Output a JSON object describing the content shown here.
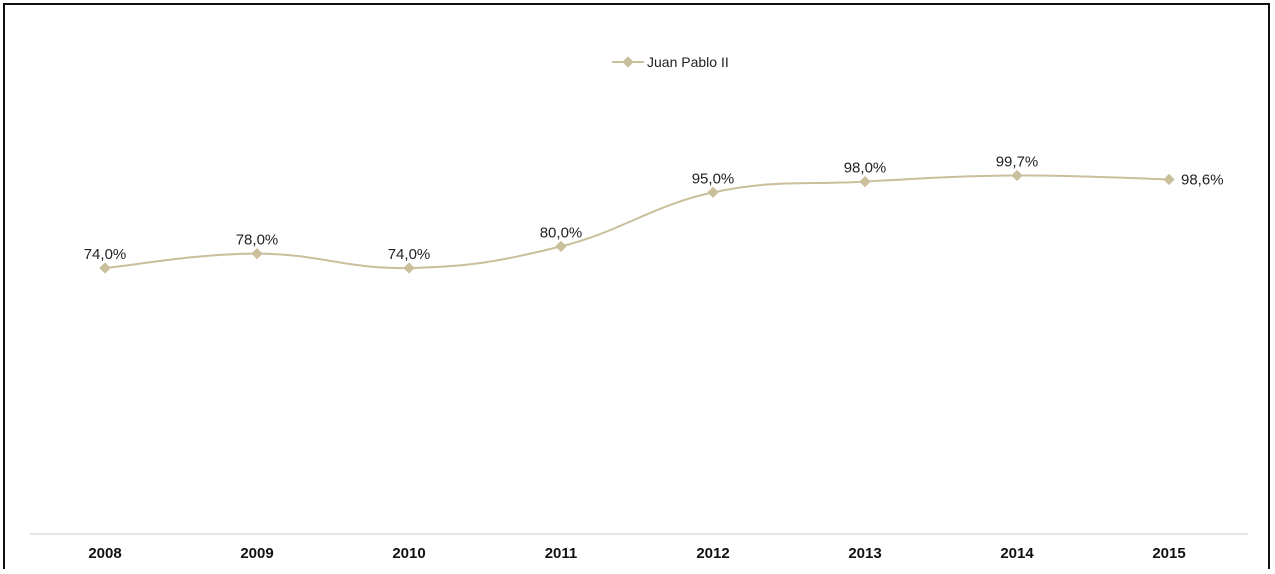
{
  "chart_data": {
    "type": "line",
    "categories": [
      "2008",
      "2009",
      "2010",
      "2011",
      "2012",
      "2013",
      "2014",
      "2015"
    ],
    "series": [
      {
        "name": "Juan Pablo II",
        "values": [
          74.0,
          78.0,
          74.0,
          80.0,
          95.0,
          98.0,
          99.7,
          98.6
        ],
        "labels": [
          "74,0%",
          "78,0%",
          "74,0%",
          "80,0%",
          "95,0%",
          "98,0%",
          "99,7%",
          "98,6%"
        ]
      }
    ],
    "legend_position": "top-center",
    "grid": false,
    "smooth": true
  },
  "colors": {
    "series": "#c9bf9b",
    "axis": "#c8c8c8"
  }
}
